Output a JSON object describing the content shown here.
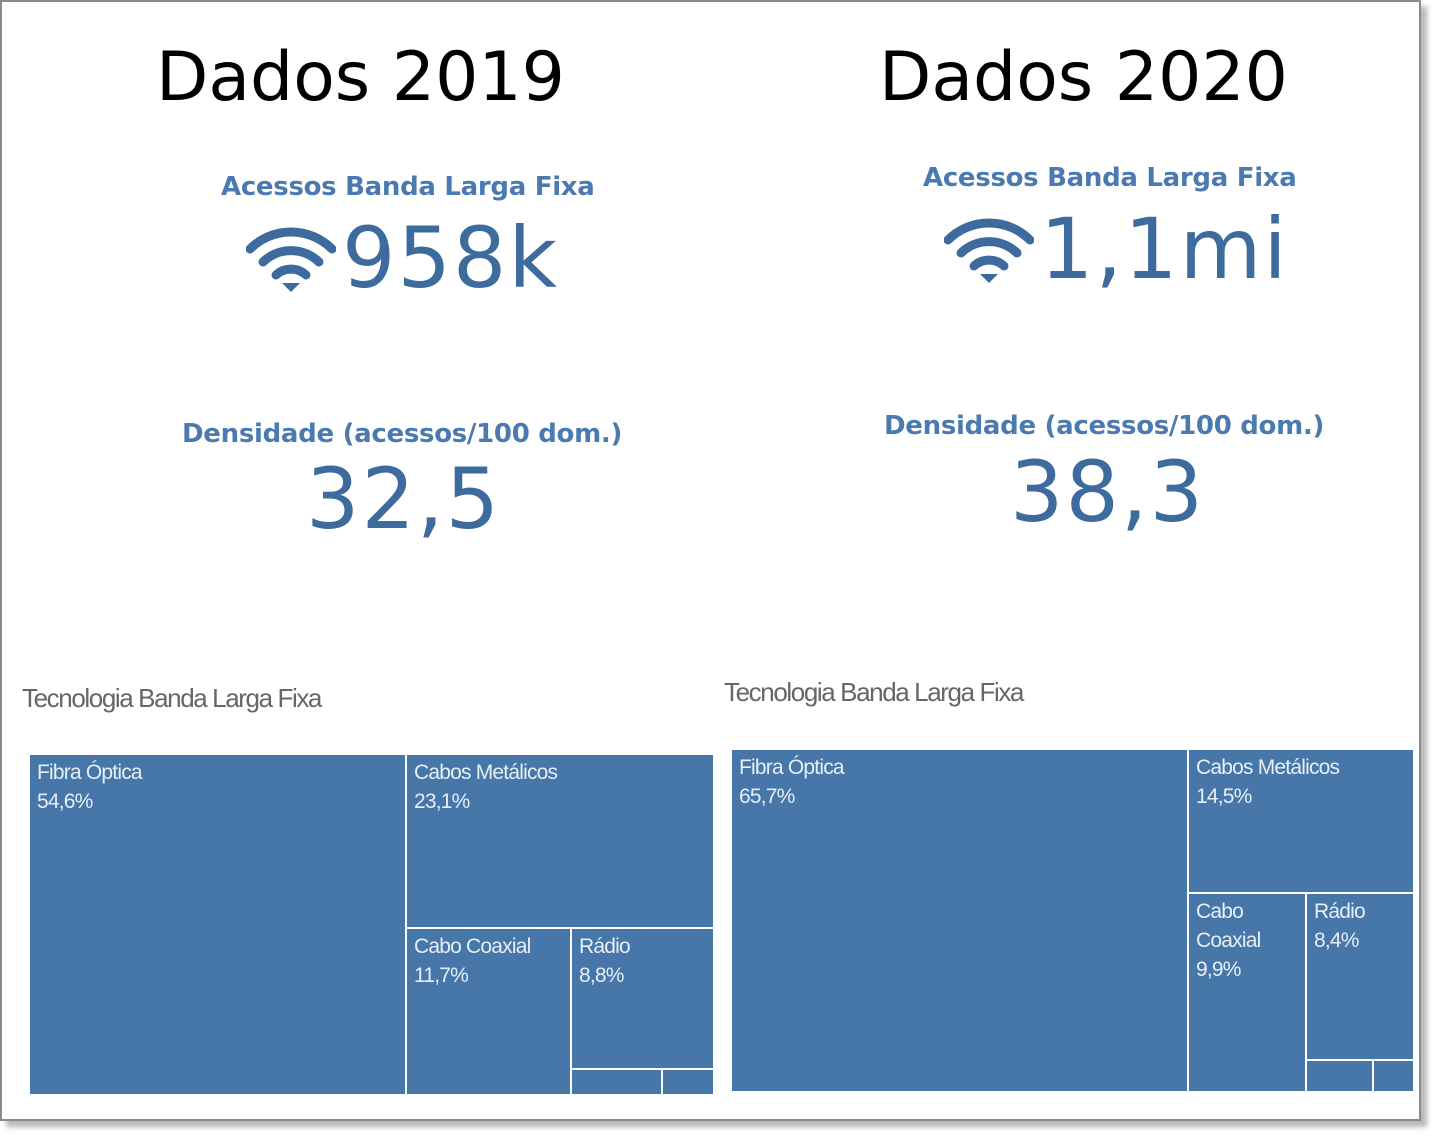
{
  "panels": [
    {
      "title": "Dados 2019",
      "access": {
        "label": "Acessos Banda Larga Fixa",
        "value": "958k",
        "icon": "wifi-icon"
      },
      "density": {
        "label": "Densidade (acessos/100 dom.)",
        "value": "32,5"
      },
      "treemap": {
        "title": "Tecnologia Banda Larga Fixa",
        "tiles": [
          {
            "label": "Fibra Óptica",
            "value": "54,6%"
          },
          {
            "label": "Cabos Metálicos",
            "value": "23,1%"
          },
          {
            "label": "Cabo Coaxial",
            "value": "11,7%"
          },
          {
            "label": "Rádio",
            "value": "8,8%"
          }
        ]
      }
    },
    {
      "title": "Dados 2020",
      "access": {
        "label": "Acessos Banda Larga Fixa",
        "value": "1,1mi",
        "icon": "wifi-icon"
      },
      "density": {
        "label": "Densidade (acessos/100 dom.)",
        "value": "38,3"
      },
      "treemap": {
        "title": "Tecnologia Banda Larga Fixa",
        "tiles": [
          {
            "label": "Fibra Óptica",
            "value": "65,7%"
          },
          {
            "label": "Cabos Metálicos",
            "value": "14,5%"
          },
          {
            "label": "Cabo Coaxial",
            "value": "9,9%"
          },
          {
            "label": "Rádio",
            "value": "8,4%"
          }
        ]
      }
    }
  ],
  "colors": {
    "tile": "#4677a8",
    "kpi_label": "#4a7ab0",
    "kpi_value": "#3d6b9e"
  }
}
